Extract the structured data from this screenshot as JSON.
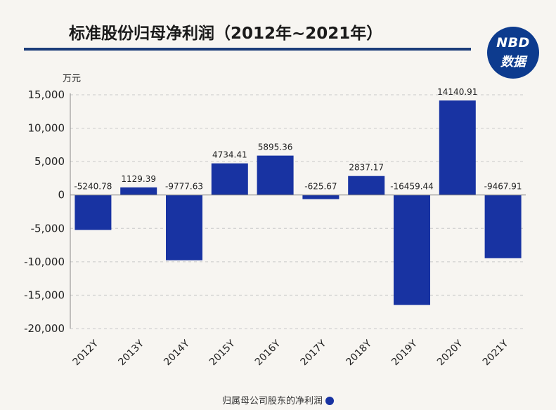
{
  "header": {
    "title": "标准股份归母净利润（2012年~2021年）",
    "logo_line1": "NBD",
    "logo_line2": "数据"
  },
  "chart_data": {
    "type": "bar",
    "title": "标准股份归母净利润（2012年~2021年）",
    "ylabel": "万元",
    "xlabel": "",
    "categories": [
      "2012Y",
      "2013Y",
      "2014Y",
      "2015Y",
      "2016Y",
      "2017Y",
      "2018Y",
      "2019Y",
      "2020Y",
      "2021Y"
    ],
    "values": [
      -5240.78,
      1129.39,
      -9777.63,
      4734.41,
      5895.36,
      -625.67,
      2837.17,
      -16459.44,
      14140.91,
      -9467.91
    ],
    "data_labels": [
      "-5240.78",
      "1129.39",
      "-9777.63",
      "4734.41",
      "5895.36",
      "-625.67",
      "2837.17",
      "-16459.44",
      "14140.91",
      "-9467.91"
    ],
    "ylim": [
      -20000,
      15000
    ],
    "yticks": [
      15000,
      10000,
      5000,
      0,
      -5000,
      -10000,
      -15000,
      -20000
    ],
    "ytick_labels": [
      "15,000",
      "10,000",
      "5,000",
      "0",
      "-5,000",
      "-10,000",
      "-15,000",
      "-20,000"
    ],
    "grid": true,
    "legend": {
      "label": "归属母公司股东的净利润",
      "position": "bottom-center"
    },
    "colors": {
      "bar": "#1833a2",
      "grid": "#c9c9c9",
      "axis": "#888888"
    }
  }
}
